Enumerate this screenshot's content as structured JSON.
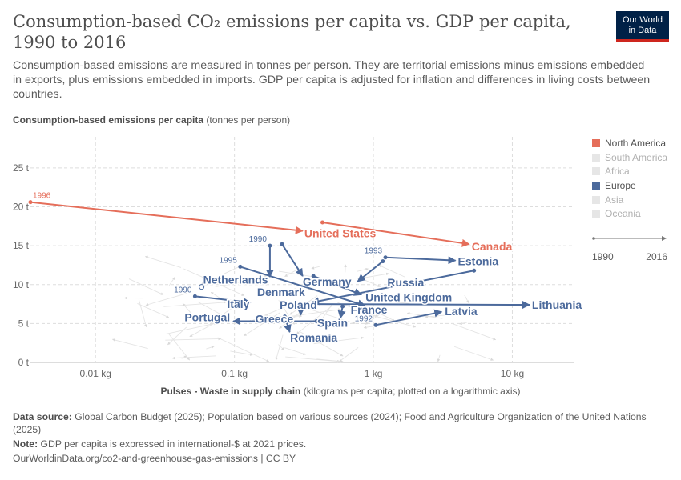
{
  "title": "Consumption-based CO₂ emissions per capita vs. GDP per capita, 1990 to 2016",
  "subtitle": "Consumption-based emissions are measured in tonnes per person. They are territorial emissions minus emissions embedded in exports, plus emissions embedded in imports. GDP per capita is adjusted for inflation and differences in living costs between countries.",
  "logo": {
    "line1": "Our World",
    "line2": "in Data"
  },
  "footer": {
    "source_label": "Data source:",
    "source_text": "Global Carbon Budget (2025); Population based on various sources (2024); Food and Agriculture Organization of the United Nations (2025)",
    "note_label": "Note:",
    "note_text": "GDP per capita is expressed in international-$ at 2021 prices.",
    "url": "OurWorldinData.org/co2-and-greenhouse-gas-emissions | CC BY"
  },
  "legend": {
    "items": [
      {
        "label": "North America",
        "color": "#e56e5a",
        "active": true
      },
      {
        "label": "South America",
        "color": "#e6e6e6",
        "active": false
      },
      {
        "label": "Africa",
        "color": "#e6e6e6",
        "active": false
      },
      {
        "label": "Europe",
        "color": "#4c6a9c",
        "active": true
      },
      {
        "label": "Asia",
        "color": "#e6e6e6",
        "active": false
      },
      {
        "label": "Oceania",
        "color": "#e6e6e6",
        "active": false
      }
    ],
    "timeline": {
      "start": "1990",
      "end": "2016"
    }
  },
  "chart_data": {
    "type": "scatter",
    "subtype": "connected-start-end-arrows",
    "ylabel_bold": "Consumption-based emissions per capita",
    "ylabel_unit": "(tonnes per person)",
    "xlabel_bold": "Pulses - Waste in supply chain",
    "xlabel_unit": "(kilograms per capita; plotted on a logarithmic axis)",
    "x_scale": "log",
    "xlim": [
      0.0034,
      28
    ],
    "ylim": [
      0,
      29
    ],
    "x_ticks": [
      {
        "v": 0.01,
        "label": "0.01 kg"
      },
      {
        "v": 0.1,
        "label": "0.1 kg"
      },
      {
        "v": 1,
        "label": "1 kg"
      },
      {
        "v": 10,
        "label": "10 kg"
      }
    ],
    "y_ticks": [
      {
        "v": 0,
        "label": "0 t"
      },
      {
        "v": 5,
        "label": "5 t"
      },
      {
        "v": 10,
        "label": "10 t"
      },
      {
        "v": 15,
        "label": "15 t"
      },
      {
        "v": 20,
        "label": "20 t"
      },
      {
        "v": 25,
        "label": "25 t"
      }
    ],
    "grid": true,
    "legend_position": "right",
    "series": [
      {
        "name": "United States",
        "region": "North America",
        "start": [
          0.0034,
          20.6
        ],
        "end": [
          0.31,
          16.9
        ],
        "start_year": "1996"
      },
      {
        "name": "Canada",
        "region": "North America",
        "start": [
          0.43,
          18.0
        ],
        "end": [
          4.9,
          15.2
        ]
      },
      {
        "name": "Estonia",
        "region": "Europe",
        "start": [
          1.22,
          13.5
        ],
        "end": [
          3.9,
          13.1
        ],
        "start_year": "1993"
      },
      {
        "name": "Germany",
        "region": "Europe",
        "start": [
          0.22,
          15.2
        ],
        "end": [
          0.31,
          11.1
        ]
      },
      {
        "name": "Denmark",
        "region": "Europe",
        "start": [
          0.18,
          15.0
        ],
        "end": [
          0.18,
          11.0
        ],
        "start_year": "1990"
      },
      {
        "name": "France",
        "region": "Europe",
        "start": [
          0.11,
          12.3
        ],
        "end": [
          0.87,
          7.3
        ],
        "start_year": "1995"
      },
      {
        "name": "Netherlands",
        "region": "Europe",
        "start": [
          0.058,
          9.7
        ],
        "end": [
          0.058,
          9.7
        ]
      },
      {
        "name": "Italy",
        "region": "Europe",
        "start": [
          0.052,
          8.5
        ],
        "end": [
          0.13,
          7.7
        ],
        "start_year": "1990"
      },
      {
        "name": "Poland",
        "region": "Europe",
        "start": [
          5.3,
          11.8
        ],
        "end": [
          0.36,
          7.7
        ]
      },
      {
        "name": "Russia",
        "region": "Europe",
        "start": [
          1.17,
          13.0
        ],
        "end": [
          0.77,
          10.4
        ]
      },
      {
        "name": "United Kingdom",
        "region": "Europe",
        "start": [
          0.37,
          11.1
        ],
        "end": [
          0.82,
          8.7
        ]
      },
      {
        "name": "Lithuania",
        "region": "Europe",
        "start": [
          0.37,
          7.5
        ],
        "end": [
          13.3,
          7.4
        ]
      },
      {
        "name": "Latvia",
        "region": "Europe",
        "start": [
          1.04,
          4.8
        ],
        "end": [
          3.1,
          6.5
        ],
        "start_year": "1992"
      },
      {
        "name": "Portugal",
        "region": "Europe",
        "start": [
          0.39,
          5.3
        ],
        "end": [
          0.098,
          5.3
        ]
      },
      {
        "name": "Spain",
        "region": "Europe",
        "start": [
          0.6,
          7.2
        ],
        "end": [
          0.58,
          5.7
        ]
      },
      {
        "name": "Greece",
        "region": "Europe",
        "start": [
          0.3,
          7.2
        ],
        "end": [
          0.3,
          6.1
        ]
      },
      {
        "name": "Romania",
        "region": "Europe",
        "start": [
          0.23,
          5.9
        ],
        "end": [
          0.25,
          3.9
        ]
      }
    ]
  }
}
